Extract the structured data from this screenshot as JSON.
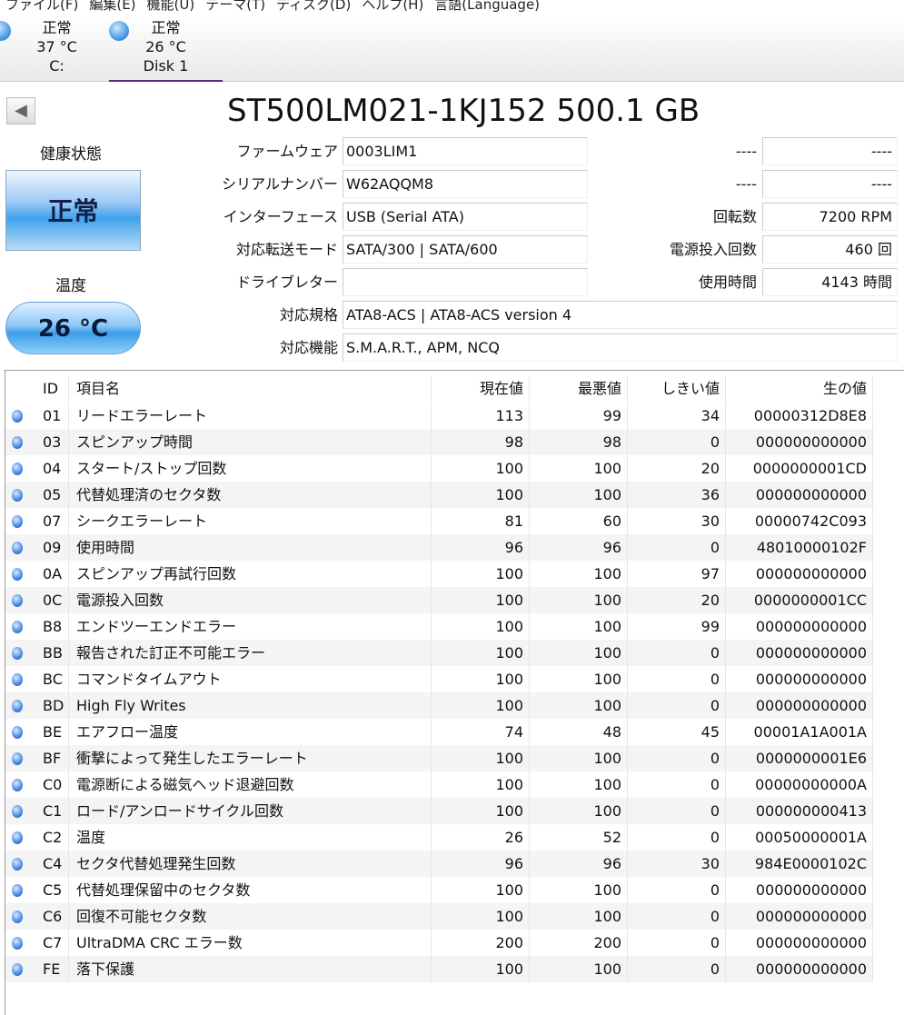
{
  "menu": [
    "ファイル(F)",
    "編集(E)",
    "機能(U)",
    "テーマ(T)",
    "ディスク(D)",
    "ヘルプ(H)",
    "言語(Language)"
  ],
  "disks": [
    {
      "status": "正常",
      "temp": "37 °C",
      "name": "C:"
    },
    {
      "status": "正常",
      "temp": "26 °C",
      "name": "Disk 1"
    }
  ],
  "model": "ST500LM021-1KJ152 500.1 GB",
  "health_label": "健康状態",
  "health_value": "正常",
  "temp_label": "温度",
  "temp_value": "26 °C",
  "info": {
    "firmware": {
      "label": "ファームウェア",
      "value": "0003LIM1"
    },
    "serial": {
      "label": "シリアルナンバー",
      "value": "W62AQQM8"
    },
    "interface": {
      "label": "インターフェース",
      "value": "USB (Serial ATA)"
    },
    "transfer": {
      "label": "対応転送モード",
      "value": "SATA/300 | SATA/600"
    },
    "letter": {
      "label": "ドライブレター",
      "value": ""
    },
    "standard": {
      "label": "対応規格",
      "value": "ATA8-ACS | ATA8-ACS version 4"
    },
    "features": {
      "label": "対応機能",
      "value": "S.M.A.R.T., APM, NCQ"
    },
    "r1": {
      "label": "----",
      "value": "----"
    },
    "r2": {
      "label": "----",
      "value": "----"
    },
    "rpm": {
      "label": "回転数",
      "value": "7200 RPM"
    },
    "power_count": {
      "label": "電源投入回数",
      "value": "460 回"
    },
    "hours": {
      "label": "使用時間",
      "value": "4143 時間"
    }
  },
  "table": {
    "headers": [
      "ID",
      "項目名",
      "現在値",
      "最悪値",
      "しきい値",
      "生の値"
    ],
    "rows": [
      [
        "01",
        "リードエラーレート",
        "113",
        "99",
        "34",
        "00000312D8E8"
      ],
      [
        "03",
        "スピンアップ時間",
        "98",
        "98",
        "0",
        "000000000000"
      ],
      [
        "04",
        "スタート/ストップ回数",
        "100",
        "100",
        "20",
        "0000000001CD"
      ],
      [
        "05",
        "代替処理済のセクタ数",
        "100",
        "100",
        "36",
        "000000000000"
      ],
      [
        "07",
        "シークエラーレート",
        "81",
        "60",
        "30",
        "00000742C093"
      ],
      [
        "09",
        "使用時間",
        "96",
        "96",
        "0",
        "48010000102F"
      ],
      [
        "0A",
        "スピンアップ再試行回数",
        "100",
        "100",
        "97",
        "000000000000"
      ],
      [
        "0C",
        "電源投入回数",
        "100",
        "100",
        "20",
        "0000000001CC"
      ],
      [
        "B8",
        "エンドツーエンドエラー",
        "100",
        "100",
        "99",
        "000000000000"
      ],
      [
        "BB",
        "報告された訂正不可能エラー",
        "100",
        "100",
        "0",
        "000000000000"
      ],
      [
        "BC",
        "コマンドタイムアウト",
        "100",
        "100",
        "0",
        "000000000000"
      ],
      [
        "BD",
        "High Fly Writes",
        "100",
        "100",
        "0",
        "000000000000"
      ],
      [
        "BE",
        "エアフロー温度",
        "74",
        "48",
        "45",
        "00001A1A001A"
      ],
      [
        "BF",
        "衝撃によって発生したエラーレート",
        "100",
        "100",
        "0",
        "0000000001E6"
      ],
      [
        "C0",
        "電源断による磁気ヘッド退避回数",
        "100",
        "100",
        "0",
        "00000000000A"
      ],
      [
        "C1",
        "ロード/アンロードサイクル回数",
        "100",
        "100",
        "0",
        "000000000413"
      ],
      [
        "C2",
        "温度",
        "26",
        "52",
        "0",
        "00050000001A"
      ],
      [
        "C4",
        "セクタ代替処理発生回数",
        "96",
        "96",
        "30",
        "984E0000102C"
      ],
      [
        "C5",
        "代替処理保留中のセクタ数",
        "100",
        "100",
        "0",
        "000000000000"
      ],
      [
        "C6",
        "回復不可能セクタ数",
        "100",
        "100",
        "0",
        "000000000000"
      ],
      [
        "C7",
        "UltraDMA CRC エラー数",
        "200",
        "200",
        "0",
        "000000000000"
      ],
      [
        "FE",
        "落下保護",
        "100",
        "100",
        "0",
        "000000000000"
      ]
    ]
  },
  "colors": {
    "accent": "#5a2b7a",
    "status_good": "#3fa2ea"
  }
}
